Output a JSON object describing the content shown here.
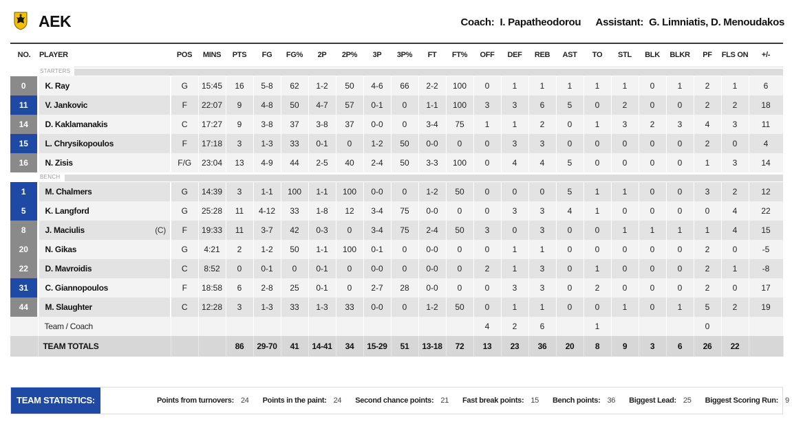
{
  "team": {
    "name": "AEK",
    "logo_icon": "aek-eagle-crest-icon"
  },
  "staff": {
    "coach_label": "Coach:",
    "coach": "I. Papatheodorou",
    "assistant_label": "Assistant:",
    "assistants": "G. Limniatis, D. Menoudakos"
  },
  "headers": [
    "NO.",
    "PLAYER",
    "POS",
    "MINS",
    "PTS",
    "FG",
    "FG%",
    "2P",
    "2P%",
    "3P",
    "3P%",
    "FT",
    "FT%",
    "OFF",
    "DEF",
    "REB",
    "AST",
    "TO",
    "STL",
    "BLK",
    "BLKR",
    "PF",
    "FLS ON",
    "+/-"
  ],
  "sections": {
    "starters": "STARTERS",
    "bench": "BENCH"
  },
  "starters": [
    {
      "no": "0",
      "color": "gray",
      "player": "K. Ray",
      "captain": "",
      "stats": [
        "G",
        "15:45",
        "16",
        "5-8",
        "62",
        "1-2",
        "50",
        "4-6",
        "66",
        "2-2",
        "100",
        "0",
        "1",
        "1",
        "1",
        "1",
        "1",
        "0",
        "1",
        "2",
        "1",
        "6"
      ]
    },
    {
      "no": "11",
      "color": "blue",
      "player": "V. Jankovic",
      "captain": "",
      "stats": [
        "F",
        "22:07",
        "9",
        "4-8",
        "50",
        "4-7",
        "57",
        "0-1",
        "0",
        "1-1",
        "100",
        "3",
        "3",
        "6",
        "5",
        "0",
        "2",
        "0",
        "0",
        "2",
        "2",
        "18"
      ]
    },
    {
      "no": "14",
      "color": "gray",
      "player": "D. Kaklamanakis",
      "captain": "",
      "stats": [
        "C",
        "17:27",
        "9",
        "3-8",
        "37",
        "3-8",
        "37",
        "0-0",
        "0",
        "3-4",
        "75",
        "1",
        "1",
        "2",
        "0",
        "1",
        "3",
        "2",
        "3",
        "4",
        "3",
        "11"
      ]
    },
    {
      "no": "15",
      "color": "blue",
      "player": "L. Chrysikopoulos",
      "captain": "",
      "stats": [
        "F",
        "17:18",
        "3",
        "1-3",
        "33",
        "0-1",
        "0",
        "1-2",
        "50",
        "0-0",
        "0",
        "0",
        "3",
        "3",
        "0",
        "0",
        "0",
        "0",
        "0",
        "2",
        "0",
        "4"
      ]
    },
    {
      "no": "16",
      "color": "gray",
      "player": "N. Zisis",
      "captain": "",
      "stats": [
        "F/G",
        "23:04",
        "13",
        "4-9",
        "44",
        "2-5",
        "40",
        "2-4",
        "50",
        "3-3",
        "100",
        "0",
        "4",
        "4",
        "5",
        "0",
        "0",
        "0",
        "0",
        "1",
        "3",
        "14"
      ]
    }
  ],
  "bench": [
    {
      "no": "1",
      "color": "blue",
      "player": "M. Chalmers",
      "captain": "",
      "stats": [
        "G",
        "14:39",
        "3",
        "1-1",
        "100",
        "1-1",
        "100",
        "0-0",
        "0",
        "1-2",
        "50",
        "0",
        "0",
        "0",
        "5",
        "1",
        "1",
        "0",
        "0",
        "3",
        "2",
        "12"
      ]
    },
    {
      "no": "5",
      "color": "blue",
      "player": "K. Langford",
      "captain": "",
      "stats": [
        "G",
        "25:28",
        "11",
        "4-12",
        "33",
        "1-8",
        "12",
        "3-4",
        "75",
        "0-0",
        "0",
        "0",
        "3",
        "3",
        "4",
        "1",
        "0",
        "0",
        "0",
        "0",
        "4",
        "22"
      ]
    },
    {
      "no": "8",
      "color": "gray",
      "player": "J. Maciulis",
      "captain": "(C)",
      "stats": [
        "F",
        "19:33",
        "11",
        "3-7",
        "42",
        "0-3",
        "0",
        "3-4",
        "75",
        "2-4",
        "50",
        "3",
        "0",
        "3",
        "0",
        "0",
        "1",
        "1",
        "1",
        "1",
        "4",
        "15"
      ]
    },
    {
      "no": "20",
      "color": "gray",
      "player": "N. Gikas",
      "captain": "",
      "stats": [
        "G",
        "4:21",
        "2",
        "1-2",
        "50",
        "1-1",
        "100",
        "0-1",
        "0",
        "0-0",
        "0",
        "0",
        "1",
        "1",
        "0",
        "0",
        "0",
        "0",
        "0",
        "2",
        "0",
        "-5"
      ]
    },
    {
      "no": "22",
      "color": "gray",
      "player": "D. Mavroidis",
      "captain": "",
      "stats": [
        "C",
        "8:52",
        "0",
        "0-1",
        "0",
        "0-1",
        "0",
        "0-0",
        "0",
        "0-0",
        "0",
        "2",
        "1",
        "3",
        "0",
        "1",
        "0",
        "0",
        "0",
        "2",
        "1",
        "-8"
      ]
    },
    {
      "no": "31",
      "color": "blue",
      "player": "C. Giannopoulos",
      "captain": "",
      "stats": [
        "F",
        "18:58",
        "6",
        "2-8",
        "25",
        "0-1",
        "0",
        "2-7",
        "28",
        "0-0",
        "0",
        "0",
        "3",
        "3",
        "0",
        "2",
        "0",
        "0",
        "0",
        "2",
        "0",
        "17"
      ]
    },
    {
      "no": "44",
      "color": "gray",
      "player": "M. Slaughter",
      "captain": "",
      "stats": [
        "C",
        "12:28",
        "3",
        "1-3",
        "33",
        "1-3",
        "33",
        "0-0",
        "0",
        "1-2",
        "50",
        "0",
        "1",
        "1",
        "0",
        "0",
        "1",
        "0",
        "1",
        "5",
        "2",
        "19"
      ]
    }
  ],
  "team_coach": {
    "label": "Team / Coach",
    "stats": [
      "",
      "",
      "",
      "",
      "",
      "",
      "",
      "",
      "",
      "",
      "",
      "4",
      "2",
      "6",
      "",
      "1",
      "",
      "",
      "",
      "0",
      "",
      ""
    ]
  },
  "totals": {
    "label": "TEAM TOTALS",
    "stats": [
      "",
      "",
      "86",
      "29-70",
      "41",
      "14-41",
      "34",
      "15-29",
      "51",
      "13-18",
      "72",
      "13",
      "23",
      "36",
      "20",
      "8",
      "9",
      "3",
      "6",
      "26",
      "22",
      ""
    ]
  },
  "team_statistics": {
    "title": "TEAM STATISTICS:",
    "items": [
      {
        "label": "Points from turnovers:",
        "value": "24"
      },
      {
        "label": "Points in the paint:",
        "value": "24"
      },
      {
        "label": "Second chance points:",
        "value": "21"
      },
      {
        "label": "Fast break points:",
        "value": "15"
      },
      {
        "label": "Bench points:",
        "value": "36"
      },
      {
        "label": "Biggest Lead:",
        "value": "25"
      },
      {
        "label": "Biggest Scoring Run:",
        "value": "9"
      }
    ]
  },
  "colors": {
    "accent_blue": "#1e4aa6",
    "number_gray": "#8a8a8a",
    "crest_yellow": "#f2c200"
  }
}
